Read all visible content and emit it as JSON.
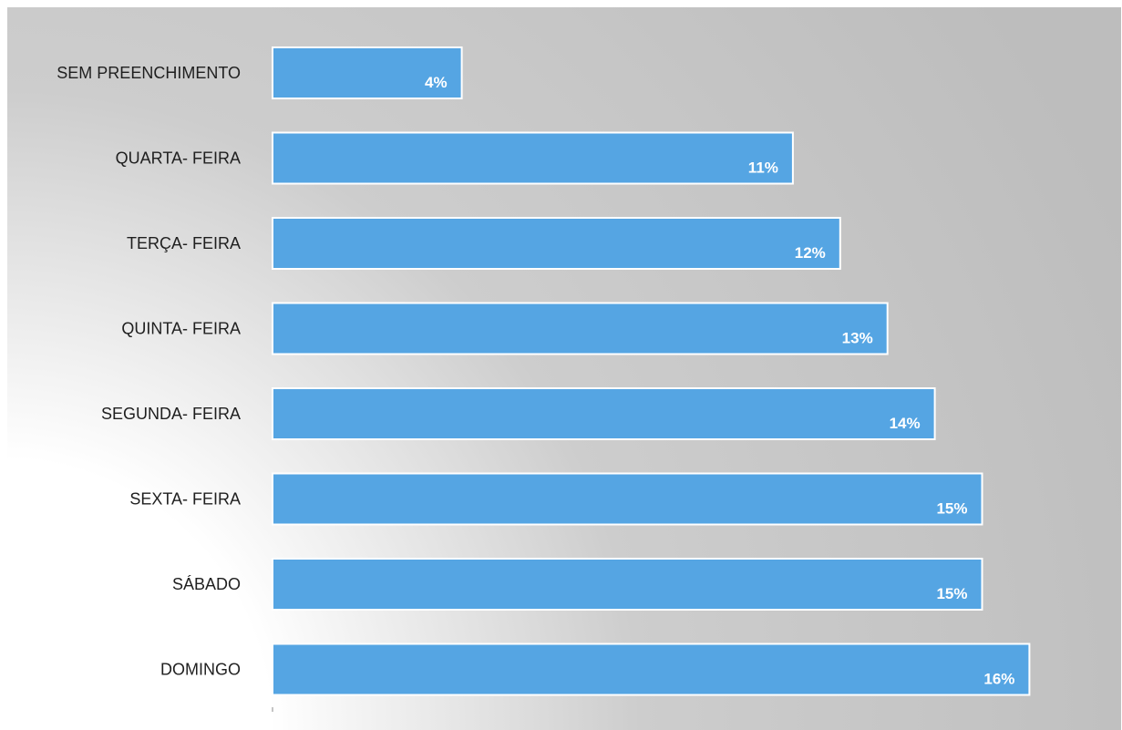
{
  "chart_data": {
    "type": "bar",
    "orientation": "horizontal",
    "categories": [
      "SEM PREENCHIMENTO",
      "QUARTA- FEIRA",
      "TERÇA- FEIRA",
      "QUINTA- FEIRA",
      "SEGUNDA- FEIRA",
      "SEXTA- FEIRA",
      "SÁBADO",
      "DOMINGO"
    ],
    "values": [
      4,
      11,
      12,
      13,
      14,
      15,
      15,
      16
    ],
    "value_labels": [
      "4%",
      "11%",
      "12%",
      "13%",
      "14%",
      "15%",
      "15%",
      "16%"
    ],
    "unit": "%",
    "title": "",
    "xlabel": "",
    "ylabel": "",
    "xlim": [
      0,
      16.5
    ],
    "grid": false,
    "legend": "none",
    "colors": {
      "bar": "#55a5e3",
      "bar_border": "#ffffff",
      "background_light": "#ffffff",
      "background_dark": "#bdbdbd",
      "label_text": "#1f1f1f",
      "value_text": "#ffffff"
    }
  }
}
